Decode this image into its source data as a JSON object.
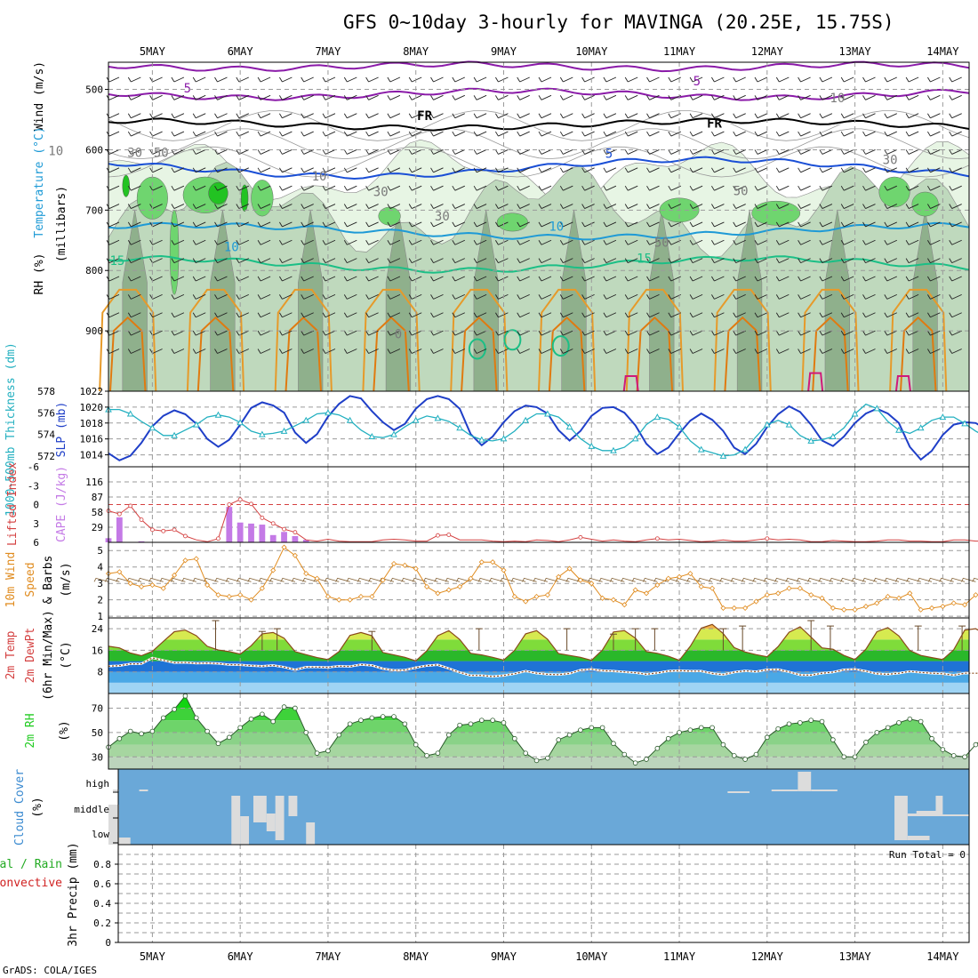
{
  "title": "GFS 0~10day 3-hourly for MAVINGA (20.25E, 15.75S)",
  "credit": "GrADS: COLA/IGES",
  "days": [
    "5MAY",
    "6MAY",
    "7MAY",
    "8MAY",
    "9MAY",
    "10MAY",
    "11MAY",
    "12MAY",
    "13MAY",
    "14MAY"
  ],
  "colors": {
    "rh_light": "#e7f5e4",
    "rh_mid": "#bfd9bd",
    "rh_dark": "#8fb08c",
    "rh_green": "#6fd56f",
    "rh_bright": "#22c322",
    "t_purple": "#8a1aa8",
    "t_blue": "#1a4fd6",
    "t_cyan": "#1e9ad6",
    "t_teal": "#1bbf86",
    "t_orange": "#e69a2a",
    "t_darkorange": "#e07a10",
    "t_magenta": "#d01a7a",
    "slp": "#1f3fc8",
    "thick": "#23b0c0",
    "cape_bar": "#c47ae6",
    "li_line": "#d44040",
    "wind_speed": "#e08c20",
    "wind_barb": "#8a6a40",
    "cloud_bg": "#6aa8d8",
    "cloud_fill": "#dcdcdc",
    "rh2m": "#22cc22"
  },
  "chart_data": [
    {
      "type": "contour",
      "panel": "upper-air",
      "ylabel_parts": [
        "RH (%)",
        "Temperature (°C)",
        "Wind (m/s)"
      ],
      "ylabel2": "(millibars)",
      "y_ticks": [
        500,
        600,
        700,
        800,
        900
      ],
      "ylim": [
        455,
        1000
      ],
      "contour_labels": [
        {
          "text": "5",
          "day": 5.4,
          "p": 505,
          "color": "t_purple"
        },
        {
          "text": "5",
          "day": 11.2,
          "p": 493,
          "color": "t_purple"
        },
        {
          "text": "FR",
          "day": 8.1,
          "p": 551,
          "color": "black"
        },
        {
          "text": "FR",
          "day": 11.4,
          "p": 563,
          "color": "black"
        },
        {
          "text": "5",
          "day": 10.2,
          "p": 613,
          "color": "t_blue"
        },
        {
          "text": "10",
          "day": 5.9,
          "p": 768,
          "color": "t_cyan"
        },
        {
          "text": "10",
          "day": 9.6,
          "p": 734,
          "color": "t_cyan"
        },
        {
          "text": "15",
          "day": 4.6,
          "p": 791,
          "color": "t_teal"
        },
        {
          "text": "15",
          "day": 10.6,
          "p": 787,
          "color": "t_teal"
        },
        {
          "text": "10",
          "day": 12.8,
          "p": 521,
          "color": "gray"
        },
        {
          "text": "10",
          "day": 3.9,
          "p": 609,
          "color": "gray"
        },
        {
          "text": "30",
          "day": 4.8,
          "p": 612,
          "color": "gray"
        },
        {
          "text": "50",
          "day": 5.1,
          "p": 612,
          "color": "gray"
        },
        {
          "text": "30",
          "day": 7.6,
          "p": 677,
          "color": "gray"
        },
        {
          "text": "10",
          "day": 6.9,
          "p": 651,
          "color": "gray"
        },
        {
          "text": "30",
          "day": 8.3,
          "p": 717,
          "color": "gray"
        },
        {
          "text": "30",
          "day": 13.4,
          "p": 624,
          "color": "gray"
        },
        {
          "text": "50",
          "day": 11.7,
          "p": 675,
          "color": "gray"
        },
        {
          "text": "50",
          "day": 10.8,
          "p": 761,
          "color": "gray"
        },
        {
          "text": "0",
          "day": 7.8,
          "p": 912,
          "color": "gray"
        }
      ]
    },
    {
      "type": "line",
      "panel": "slp-thickness",
      "ylabel_left": "1000-500mb Thickness (dm)",
      "ylabel_right": "SLP (mb)",
      "thick_ticks": [
        572,
        574,
        576,
        578
      ],
      "slp_ticks": [
        1014,
        1016,
        1018,
        1020,
        1022
      ],
      "thick_lim": [
        571,
        578
      ],
      "slp_lim": [
        1012.5,
        1022
      ],
      "x_start": 4.5,
      "x_step": 0.125,
      "slp": [
        1014.2,
        1013.3,
        1013.9,
        1015.5,
        1017.6,
        1018.9,
        1019.6,
        1019.1,
        1017.9,
        1016.0,
        1015.0,
        1015.9,
        1017.8,
        1019.9,
        1020.6,
        1020.2,
        1019.3,
        1016.8,
        1015.5,
        1016.6,
        1018.8,
        1020.4,
        1021.4,
        1021.1,
        1019.5,
        1018.1,
        1017.1,
        1017.9,
        1019.8,
        1021.0,
        1021.4,
        1021.0,
        1019.8,
        1016.6,
        1015.2,
        1016.3,
        1018.1,
        1019.5,
        1020.2,
        1020.0,
        1019.2,
        1017.1,
        1015.8,
        1017.0,
        1018.9,
        1019.9,
        1020.0,
        1019.3,
        1017.7,
        1015.4,
        1014.1,
        1014.9,
        1016.7,
        1018.3,
        1019.2,
        1018.4,
        1017.0,
        1014.9,
        1014.1,
        1015.4,
        1017.5,
        1019.1,
        1020.1,
        1019.4,
        1017.8,
        1015.8,
        1015.1,
        1016.3,
        1018.0,
        1019.2,
        1019.8,
        1019.2,
        1018.0,
        1015.0,
        1013.4,
        1014.5,
        1016.5,
        1017.8,
        1018.1,
        1018.0,
        1017.2,
        1015.0,
        1014.2,
        1015.6,
        1017.8,
        1019.5,
        1020.3,
        1019.8,
        1018.8,
        1016.4
      ],
      "thickness": [
        576.3,
        576.3,
        575.9,
        575.2,
        574.6,
        573.9,
        573.9,
        574.4,
        574.9,
        575.6,
        575.8,
        575.6,
        575.1,
        574.3,
        574.0,
        574.1,
        574.3,
        574.8,
        575.3,
        575.9,
        576.0,
        575.8,
        575.3,
        574.4,
        573.8,
        573.7,
        574.0,
        574.7,
        575.3,
        575.7,
        575.5,
        575.2,
        574.6,
        573.9,
        573.5,
        573.4,
        573.6,
        574.3,
        575.3,
        575.9,
        575.9,
        575.6,
        574.7,
        573.6,
        572.9,
        572.5,
        572.5,
        572.8,
        573.6,
        574.9,
        575.6,
        575.4,
        574.7,
        573.4,
        572.6,
        572.3,
        572.0,
        572.1,
        572.6,
        573.8,
        574.9,
        575.3,
        574.9,
        573.9,
        573.4,
        573.5,
        573.8,
        574.6,
        575.9,
        576.8,
        576.4,
        575.2,
        574.4,
        574.1,
        574.6,
        575.3,
        575.6,
        575.6,
        575.0,
        574.3,
        573.7,
        573.1,
        572.6,
        572.5,
        572.9,
        573.6,
        574.6,
        575.2,
        574.4,
        573.1
      ]
    },
    {
      "type": "bar",
      "panel": "cape-li",
      "ylabel_left": "Lifted Index",
      "ylabel_right": "CAPE (J/kg)",
      "li_ticks": [
        "-6",
        "-3",
        "0",
        "3",
        "6"
      ],
      "cape_ticks": [
        29,
        58,
        87,
        116
      ],
      "cape_lim": [
        0,
        145
      ],
      "li_lim": [
        6,
        -6
      ],
      "x_start": 4.5,
      "x_step": 0.125,
      "cape": [
        8,
        48,
        0,
        2,
        0,
        0,
        0,
        0,
        0,
        0,
        0,
        68,
        38,
        36,
        34,
        14,
        20,
        12,
        5,
        0,
        0,
        0,
        0,
        0,
        0,
        0,
        0,
        0,
        0,
        0,
        0,
        0,
        0,
        0,
        0,
        0,
        0,
        0,
        0,
        0,
        0,
        0,
        0,
        0,
        0,
        0,
        0,
        0,
        0,
        0,
        0,
        0,
        0,
        0,
        0,
        0,
        0,
        0,
        0,
        0,
        0,
        0,
        0,
        0,
        0,
        0,
        0,
        0,
        0,
        0,
        0,
        0,
        0,
        0,
        0,
        0,
        0,
        0,
        0,
        0,
        0,
        0,
        0,
        0,
        0,
        0,
        0,
        0,
        0,
        0
      ],
      "li": [
        1.0,
        1.5,
        0.2,
        2.4,
        4.0,
        4.2,
        4.0,
        5.0,
        5.6,
        5.9,
        5.4,
        0.0,
        -0.8,
        -0.1,
        2.1,
        3.0,
        3.9,
        4.4,
        5.6,
        5.8,
        5.5,
        5.8,
        5.9,
        5.9,
        5.9,
        5.6,
        5.5,
        5.6,
        5.8,
        5.8,
        4.9,
        4.8,
        5.6,
        5.6,
        5.6,
        5.8,
        5.9,
        5.8,
        5.9,
        5.6,
        5.7,
        5.9,
        5.6,
        5.2,
        5.5,
        5.8,
        5.6,
        5.8,
        5.9,
        5.6,
        5.4,
        5.6,
        5.5,
        5.7,
        5.9,
        5.8,
        5.6,
        5.8,
        5.8,
        5.6,
        5.4,
        5.6,
        5.5,
        5.6,
        5.9,
        5.9,
        5.7,
        5.8,
        5.9,
        5.9,
        5.8,
        5.6,
        5.6,
        5.8,
        5.8,
        5.9,
        5.9,
        5.6,
        5.6,
        5.8,
        5.8,
        5.4,
        5.9,
        5.8,
        5.7,
        5.6,
        5.5,
        5.9,
        5.6,
        5.1
      ]
    },
    {
      "type": "line",
      "panel": "wind10m",
      "ylabel": "10m Wind Speed & Barbs (m/s)",
      "ylabel_lines": [
        "10m Wind",
        "Speed",
        "& Barbs"
      ],
      "yunit": "(m/s)",
      "y_ticks": [
        1,
        2,
        3,
        4,
        5
      ],
      "ylim": [
        0.9,
        5.5
      ],
      "x_start": 4.5,
      "x_step": 0.125,
      "values": [
        3.6,
        3.7,
        3.0,
        2.8,
        2.9,
        2.7,
        3.5,
        4.4,
        4.5,
        2.9,
        2.3,
        2.2,
        2.3,
        2.0,
        2.7,
        3.8,
        5.2,
        4.7,
        3.6,
        3.3,
        2.2,
        2.0,
        2.0,
        2.2,
        2.2,
        3.2,
        4.2,
        4.1,
        3.9,
        2.8,
        2.4,
        2.6,
        2.8,
        3.3,
        4.3,
        4.3,
        3.8,
        2.2,
        1.9,
        2.2,
        2.3,
        3.4,
        3.9,
        3.2,
        3.0,
        2.1,
        2.0,
        1.7,
        2.6,
        2.4,
        2.9,
        3.3,
        3.4,
        3.6,
        2.8,
        2.7,
        1.5,
        1.5,
        1.5,
        1.9,
        2.3,
        2.4,
        2.7,
        2.7,
        2.3,
        2.1,
        1.5,
        1.4,
        1.4,
        1.6,
        1.8,
        2.2,
        2.1,
        2.4,
        1.4,
        1.5,
        1.6,
        1.8,
        1.7,
        2.3,
        2.2,
        2.4,
        2.4,
        2.8,
        3.3,
        4.9,
        5.5,
        3.0,
        2.3,
        3.0
      ]
    },
    {
      "type": "area",
      "panel": "temp2m",
      "ylabel": "2m Temp 2m DewPt (6hr Min/Max) (°C)",
      "ylabel_lines": [
        "2m Temp",
        "2m DewPt",
        "(6hr Min/Max)"
      ],
      "yunit": "(°C)",
      "y_ticks": [
        8,
        16,
        24
      ],
      "ylim": [
        0,
        28
      ],
      "x_start": 4.5,
      "x_step": 0.125,
      "temp": [
        17.5,
        16.9,
        15.0,
        14.0,
        15.6,
        19.3,
        22.9,
        23.5,
        21.4,
        17.5,
        16.1,
        15.5,
        14.6,
        17.7,
        22.1,
        22.6,
        20.5,
        15.5,
        14.4,
        13.3,
        12.6,
        15.5,
        21.5,
        22.6,
        21.4,
        15.2,
        14.3,
        13.4,
        12.1,
        15.8,
        21.4,
        23.3,
        20.0,
        14.9,
        14.3,
        13.4,
        12.4,
        16.0,
        22.1,
        23.3,
        20.1,
        14.8,
        14.1,
        13.4,
        12.3,
        16.1,
        22.8,
        23.3,
        20.5,
        15.5,
        14.9,
        13.8,
        12.3,
        17.5,
        24.2,
        25.6,
        22.2,
        17.0,
        15.4,
        14.4,
        13.6,
        17.4,
        22.7,
        24.7,
        20.9,
        16.9,
        16.4,
        14.1,
        12.6,
        16.4,
        22.9,
        24.4,
        21.3,
        15.9,
        14.1,
        13.3,
        12.6,
        16.2,
        23.5,
        24.0,
        21.6,
        17.0,
        15.7,
        14.1,
        12.6,
        16.8,
        23.1,
        22.7,
        21.2,
        17.7
      ],
      "dewpt": [
        10.1,
        10.3,
        11.0,
        11.0,
        13.2,
        12.3,
        11.4,
        11.5,
        11.2,
        11.3,
        11.1,
        10.7,
        10.6,
        10.3,
        10.1,
        10.4,
        9.8,
        8.8,
        9.8,
        9.8,
        9.7,
        10.1,
        10.0,
        10.7,
        10.4,
        9.2,
        8.6,
        8.7,
        9.6,
        10.3,
        10.6,
        9.3,
        7.8,
        6.7,
        6.7,
        6.3,
        6.7,
        7.3,
        8.3,
        7.5,
        7.1,
        7.0,
        7.4,
        8.7,
        9.0,
        8.5,
        8.3,
        8.0,
        7.7,
        7.1,
        7.6,
        8.3,
        8.5,
        8.3,
        8.3,
        7.4,
        7.0,
        7.9,
        8.4,
        8.1,
        8.8,
        8.9,
        8.0,
        6.9,
        6.8,
        7.5,
        7.9,
        8.8,
        9.0,
        8.3,
        7.3,
        7.1,
        7.5,
        8.2,
        7.8,
        7.5,
        7.3,
        6.8,
        7.5,
        7.5,
        7.5,
        7.9,
        8.8,
        9.1,
        9.6,
        8.5,
        8.1,
        7.9,
        7.6,
        8.4
      ],
      "whiskers": [
        {
          "day": 5.72,
          "min": 16,
          "max": 27
        },
        {
          "day": 6.25,
          "min": 16,
          "max": 23
        },
        {
          "day": 6.42,
          "min": 16,
          "max": 24
        },
        {
          "day": 7.5,
          "min": 16,
          "max": 23
        },
        {
          "day": 8.72,
          "min": 16,
          "max": 24
        },
        {
          "day": 9.72,
          "min": 16,
          "max": 24
        },
        {
          "day": 10.25,
          "min": 16,
          "max": 22
        },
        {
          "day": 10.5,
          "min": 16,
          "max": 24
        },
        {
          "day": 10.72,
          "min": 16,
          "max": 24
        },
        {
          "day": 11.5,
          "min": 16,
          "max": 24
        },
        {
          "day": 11.72,
          "min": 16,
          "max": 25
        },
        {
          "day": 12.5,
          "min": 16,
          "max": 27
        },
        {
          "day": 12.72,
          "min": 16,
          "max": 25
        },
        {
          "day": 13.72,
          "min": 16,
          "max": 25
        },
        {
          "day": 14.22,
          "min": 16,
          "max": 25
        }
      ]
    },
    {
      "type": "area",
      "panel": "rh2m",
      "ylabel": "2m RH",
      "yunit": "(%)",
      "y_ticks": [
        30,
        50,
        70
      ],
      "ylim": [
        20,
        82
      ],
      "x_start": 4.5,
      "x_step": 0.125,
      "values": [
        38,
        45,
        51,
        49,
        51,
        62,
        69,
        80,
        62,
        51,
        41,
        46,
        54,
        61,
        65,
        59,
        71,
        70,
        50,
        33,
        35,
        48,
        57,
        60,
        62,
        63,
        63,
        57,
        40,
        31,
        33,
        48,
        56,
        57,
        60,
        60,
        58,
        45,
        33,
        27,
        29,
        44,
        48,
        52,
        54,
        54,
        41,
        32,
        25,
        28,
        37,
        45,
        50,
        52,
        54,
        54,
        40,
        31,
        28,
        32,
        46,
        53,
        57,
        58,
        60,
        59,
        44,
        30,
        30,
        42,
        50,
        54,
        58,
        61,
        59,
        45,
        36,
        31,
        30,
        40,
        48,
        50,
        51,
        51,
        49,
        37,
        33,
        55,
        60,
        78
      ]
    },
    {
      "type": "heatmap",
      "panel": "cloud-cover",
      "ylabel": "Cloud Cover",
      "yunit": "(%)",
      "y_labels": [
        "high",
        "middle",
        "low"
      ]
    },
    {
      "type": "bar",
      "panel": "precip",
      "ylabel": "3hr Precip (mm)",
      "legend": [
        "Total / Rain",
        "Convective"
      ],
      "annotation": "Run Total = 0",
      "y_ticks": [
        "0",
        "0.2",
        "0.4",
        "0.6",
        "0.8"
      ],
      "ylim": [
        0,
        1
      ],
      "values": []
    }
  ]
}
